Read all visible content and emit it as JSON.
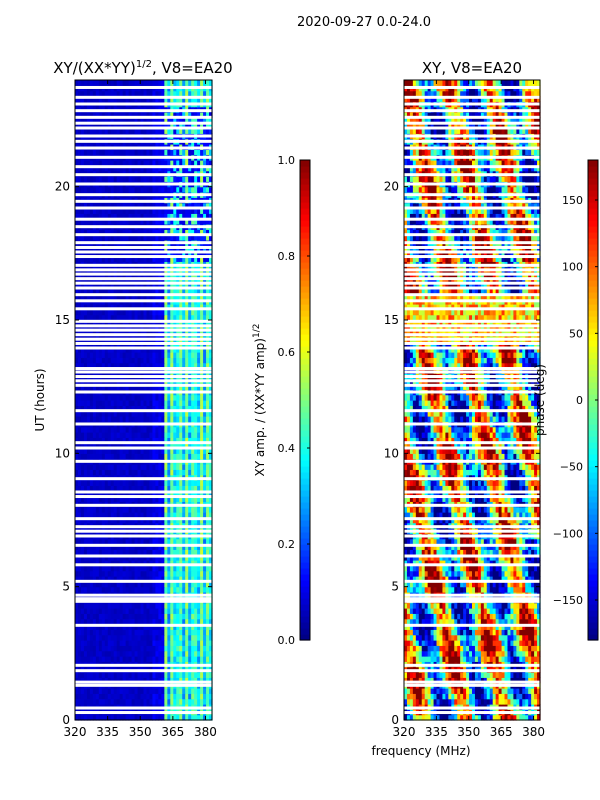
{
  "figure": {
    "suptitle": "2020-09-27 0.0-24.0",
    "xlabel": "frequency (MHz)"
  },
  "chart_data": [
    {
      "type": "heatmap",
      "title_main": "XY/(XX*YY)",
      "title_sup": "1/2",
      "title_suffix": ", V8=EA20",
      "xlabel": "frequency (MHz)",
      "ylabel": "UT (hours)",
      "xlim": [
        320,
        383
      ],
      "ylim": [
        0,
        24
      ],
      "xticks": [
        320,
        335,
        350,
        365,
        380
      ],
      "yticks": [
        0,
        5,
        10,
        15,
        20
      ],
      "colormap": "jet",
      "colorbar_label_main": "XY amp. / (XX*YY amp)",
      "colorbar_label_sup": "1/2",
      "colorbar_range": [
        0.0,
        1.0
      ],
      "colorbar_ticks": [
        "0.0",
        "0.2",
        "0.4",
        "0.6",
        "0.8",
        "1.0"
      ],
      "note": "low amplitude (~0.05) across most channels; elevated (~0.3-0.55) in band 360-382 MHz"
    },
    {
      "type": "heatmap",
      "title_main": "XY, V8=EA20",
      "xlabel": "frequency (MHz)",
      "ylabel": "",
      "xlim": [
        320,
        383
      ],
      "ylim": [
        0,
        24
      ],
      "xticks": [
        320,
        335,
        350,
        365,
        380
      ],
      "yticks": [
        0,
        5,
        10,
        15,
        20
      ],
      "colormap": "jet",
      "colorbar_label_main": "phase (deg)",
      "colorbar_range": [
        -180,
        180
      ],
      "colorbar_ticks": [
        "−150",
        "−100",
        "−50",
        "0",
        "50",
        "100",
        "150"
      ],
      "colorbar_tick_values": [
        -150,
        -100,
        -50,
        0,
        50,
        100,
        150
      ],
      "note": "noisy phase in degrees spanning full range"
    }
  ],
  "flagged_hours": [
    0.28,
    0.45,
    1.3,
    1.42,
    1.85,
    2.05,
    3.55,
    4.45,
    4.55,
    4.68,
    5.2,
    5.82,
    6.15,
    6.55,
    6.9,
    7.08,
    7.25,
    7.55,
    8.05,
    8.38,
    8.55,
    9.05,
    9.7,
    10.2,
    10.4,
    11.1,
    11.6,
    12.3,
    12.55,
    12.72,
    12.88,
    13.05,
    13.18,
    13.95,
    14.12,
    14.28,
    14.45,
    14.62,
    14.78,
    14.95,
    15.42,
    15.72,
    15.95,
    16.2,
    16.38,
    16.55,
    16.72,
    16.88,
    17.05,
    17.38,
    17.55,
    17.72,
    17.9,
    18.2,
    18.5,
    18.78,
    19.2,
    19.45,
    19.7,
    20.1,
    20.45,
    20.75,
    21.1,
    21.45,
    21.7,
    21.9,
    22.2,
    22.38,
    22.6,
    22.85,
    23.1,
    23.35,
    23.72
  ]
}
